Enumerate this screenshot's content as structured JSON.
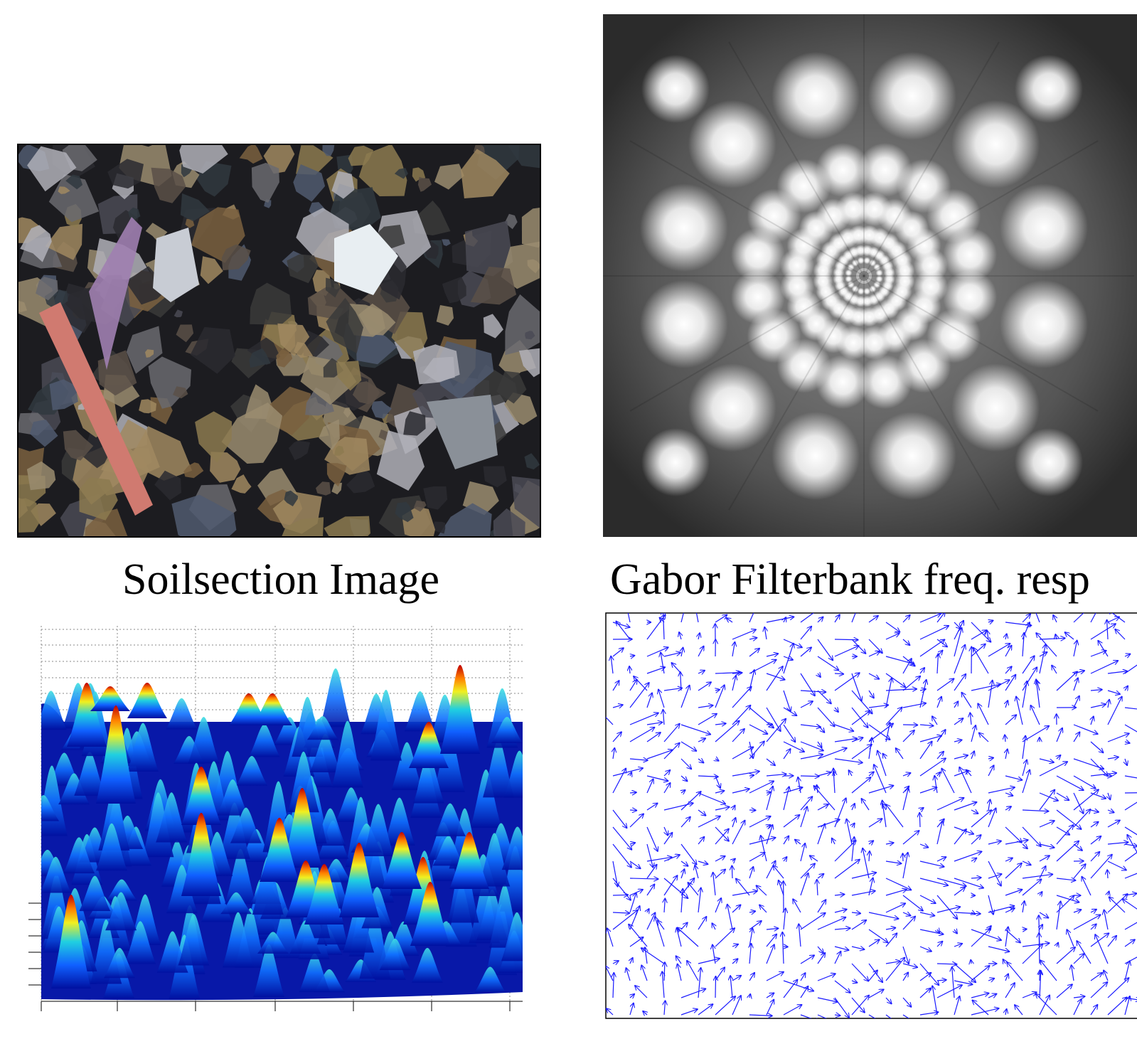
{
  "panels": [
    {
      "caption": "Soilsection Image"
    },
    {
      "caption": "Gabor Filterbank freq. resp"
    }
  ]
}
